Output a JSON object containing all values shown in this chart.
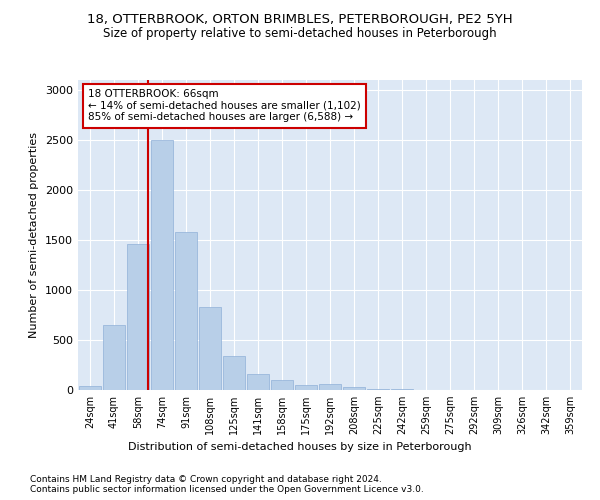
{
  "title1": "18, OTTERBROOK, ORTON BRIMBLES, PETERBOROUGH, PE2 5YH",
  "title2": "Size of property relative to semi-detached houses in Peterborough",
  "xlabel": "Distribution of semi-detached houses by size in Peterborough",
  "ylabel": "Number of semi-detached properties",
  "categories": [
    "24sqm",
    "41sqm",
    "58sqm",
    "74sqm",
    "91sqm",
    "108sqm",
    "125sqm",
    "141sqm",
    "158sqm",
    "175sqm",
    "192sqm",
    "208sqm",
    "225sqm",
    "242sqm",
    "259sqm",
    "275sqm",
    "292sqm",
    "309sqm",
    "326sqm",
    "342sqm",
    "359sqm"
  ],
  "values": [
    45,
    650,
    1460,
    2500,
    1580,
    830,
    345,
    165,
    105,
    52,
    58,
    28,
    15,
    8,
    5,
    4,
    3,
    2,
    2,
    2,
    2
  ],
  "bar_color": "#b8cfe8",
  "bar_edge_color": "#90b0d8",
  "property_line_color": "#cc0000",
  "annotation_text": "18 OTTERBROOK: 66sqm\n← 14% of semi-detached houses are smaller (1,102)\n85% of semi-detached houses are larger (6,588) →",
  "annotation_box_color": "#cc0000",
  "ylim": [
    0,
    3100
  ],
  "yticks": [
    0,
    500,
    1000,
    1500,
    2000,
    2500,
    3000
  ],
  "background_color": "#dde8f5",
  "footnote1": "Contains HM Land Registry data © Crown copyright and database right 2024.",
  "footnote2": "Contains public sector information licensed under the Open Government Licence v3.0.",
  "title1_fontsize": 9.5,
  "title2_fontsize": 8.5,
  "xlabel_fontsize": 8,
  "ylabel_fontsize": 8
}
